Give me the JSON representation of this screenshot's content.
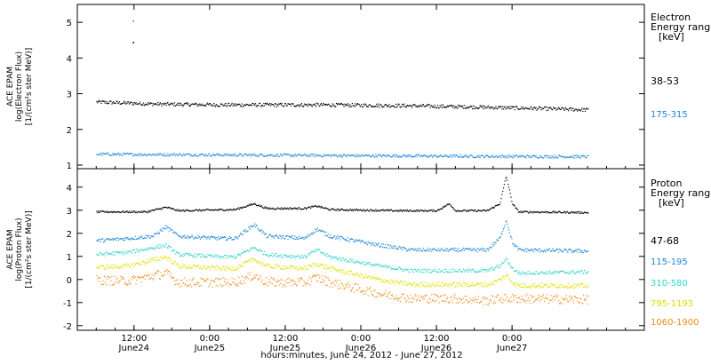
{
  "chart_data": [
    {
      "type": "scatter",
      "panel": "electron",
      "ylabel_lines": [
        "ACE EPAM",
        "log(Electron Flux)",
        "[1/(cm²s ster MeV)]"
      ],
      "ylim": [
        0.9,
        5.5
      ],
      "yticks": [
        1,
        2,
        3,
        4,
        5
      ],
      "legend_title_lines": [
        "Electron",
        "Energy ranges",
        "[keV]"
      ],
      "series": [
        {
          "name": "38-53",
          "color": "#000000",
          "base": [
            [
              0,
              2.78
            ],
            [
              10,
              2.72
            ],
            [
              20,
              2.7
            ],
            [
              36,
              2.7
            ],
            [
              48,
              2.68
            ],
            [
              60,
              2.64
            ],
            [
              70,
              2.6
            ],
            [
              78,
              2.56
            ]
          ],
          "noise": 0.05,
          "outliers": [
            [
              5.8,
              4.45
            ]
          ]
        },
        {
          "name": "175-315",
          "color": "#1e88d8",
          "base": [
            [
              0,
              1.32
            ],
            [
              20,
              1.3
            ],
            [
              40,
              1.28
            ],
            [
              60,
              1.26
            ],
            [
              78,
              1.25
            ]
          ],
          "noise": 0.04,
          "outliers": [
            [
              5.8,
              5.05
            ]
          ]
        }
      ]
    },
    {
      "type": "scatter",
      "panel": "proton",
      "ylabel_lines": [
        "ACE EPAM",
        "log(Proton Flux)",
        "[1/(cm²s ster MeV)]"
      ],
      "ylim": [
        -2.2,
        4.8
      ],
      "yticks": [
        -2,
        -1,
        0,
        1,
        2,
        3,
        4
      ],
      "legend_title_lines": [
        "Proton",
        "Energy ranges",
        "[keV]"
      ],
      "series": [
        {
          "name": "47-68",
          "color": "#000000",
          "base": [
            [
              0,
              2.95
            ],
            [
              8,
              2.95
            ],
            [
              11,
              3.15
            ],
            [
              13,
              3.0
            ],
            [
              22,
              3.05
            ],
            [
              25,
              3.3
            ],
            [
              27,
              3.1
            ],
            [
              33,
              3.1
            ],
            [
              35,
              3.2
            ],
            [
              37,
              3.05
            ],
            [
              48,
              3.0
            ],
            [
              54,
              3.0
            ],
            [
              56,
              3.3
            ],
            [
              57,
              3.0
            ],
            [
              62,
              3.0
            ],
            [
              64,
              3.3
            ],
            [
              65,
              4.5
            ],
            [
              66,
              3.3
            ],
            [
              67,
              2.95
            ],
            [
              78,
              2.92
            ]
          ],
          "noise": 0.04
        },
        {
          "name": "115-195",
          "color": "#1e88d8",
          "base": [
            [
              0,
              1.7
            ],
            [
              5,
              1.8
            ],
            [
              9,
              1.9
            ],
            [
              11,
              2.3
            ],
            [
              13,
              1.9
            ],
            [
              20,
              1.8
            ],
            [
              22,
              1.8
            ],
            [
              25,
              2.4
            ],
            [
              27,
              1.9
            ],
            [
              33,
              1.8
            ],
            [
              35,
              2.2
            ],
            [
              37,
              1.9
            ],
            [
              45,
              1.5
            ],
            [
              50,
              1.3
            ],
            [
              56,
              1.3
            ],
            [
              62,
              1.3
            ],
            [
              64,
              1.8
            ],
            [
              65,
              2.6
            ],
            [
              66,
              1.6
            ],
            [
              67,
              1.3
            ],
            [
              78,
              1.25
            ]
          ],
          "noise": 0.08
        },
        {
          "name": "310-580",
          "color": "#34d4c8",
          "base": [
            [
              0,
              1.1
            ],
            [
              5,
              1.2
            ],
            [
              11,
              1.5
            ],
            [
              13,
              1.1
            ],
            [
              20,
              1.0
            ],
            [
              22,
              1.0
            ],
            [
              25,
              1.4
            ],
            [
              27,
              1.1
            ],
            [
              33,
              1.0
            ],
            [
              35,
              1.3
            ],
            [
              37,
              1.0
            ],
            [
              45,
              0.6
            ],
            [
              50,
              0.4
            ],
            [
              56,
              0.4
            ],
            [
              62,
              0.4
            ],
            [
              64,
              0.6
            ],
            [
              65,
              0.9
            ],
            [
              66,
              0.5
            ],
            [
              67,
              0.3
            ],
            [
              78,
              0.35
            ]
          ],
          "noise": 0.08
        },
        {
          "name": "795-1193",
          "color": "#e0e000",
          "base": [
            [
              0,
              0.55
            ],
            [
              5,
              0.6
            ],
            [
              11,
              1.0
            ],
            [
              13,
              0.6
            ],
            [
              20,
              0.5
            ],
            [
              22,
              0.5
            ],
            [
              25,
              0.9
            ],
            [
              27,
              0.6
            ],
            [
              33,
              0.5
            ],
            [
              35,
              0.7
            ],
            [
              37,
              0.5
            ],
            [
              45,
              0.0
            ],
            [
              50,
              -0.2
            ],
            [
              56,
              -0.2
            ],
            [
              62,
              -0.2
            ],
            [
              64,
              0.0
            ],
            [
              65,
              0.2
            ],
            [
              66,
              -0.1
            ],
            [
              67,
              -0.25
            ],
            [
              78,
              -0.25
            ]
          ],
          "noise": 0.1
        },
        {
          "name": "1060-1900",
          "color": "#f08c1c",
          "base": [
            [
              0,
              0.0
            ],
            [
              5,
              -0.05
            ],
            [
              11,
              0.3
            ],
            [
              13,
              -0.1
            ],
            [
              20,
              -0.1
            ],
            [
              22,
              -0.1
            ],
            [
              25,
              0.2
            ],
            [
              27,
              -0.1
            ],
            [
              33,
              -0.1
            ],
            [
              35,
              0.1
            ],
            [
              37,
              -0.1
            ],
            [
              45,
              -0.6
            ],
            [
              50,
              -0.8
            ],
            [
              56,
              -0.8
            ],
            [
              62,
              -0.9
            ],
            [
              64,
              -0.8
            ],
            [
              66,
              -0.8
            ],
            [
              78,
              -0.85
            ]
          ],
          "noise": 0.2
        }
      ]
    }
  ],
  "time_axis": {
    "xlim": [
      -3,
      87
    ],
    "data_end": 78,
    "major_ticks": [
      {
        "hour": 6,
        "top": "12:00",
        "bottom": "June24"
      },
      {
        "hour": 18,
        "top": "0:00",
        "bottom": "June25"
      },
      {
        "hour": 30,
        "top": "12:00",
        "bottom": "June25"
      },
      {
        "hour": 42,
        "top": "0:00",
        "bottom": "June26"
      },
      {
        "hour": 54,
        "top": "12:00",
        "bottom": "June26"
      },
      {
        "hour": 66,
        "top": "0:00",
        "bottom": "June27"
      }
    ],
    "xlabel": "hours:minutes, June 24, 2012 - June 27, 2012"
  }
}
